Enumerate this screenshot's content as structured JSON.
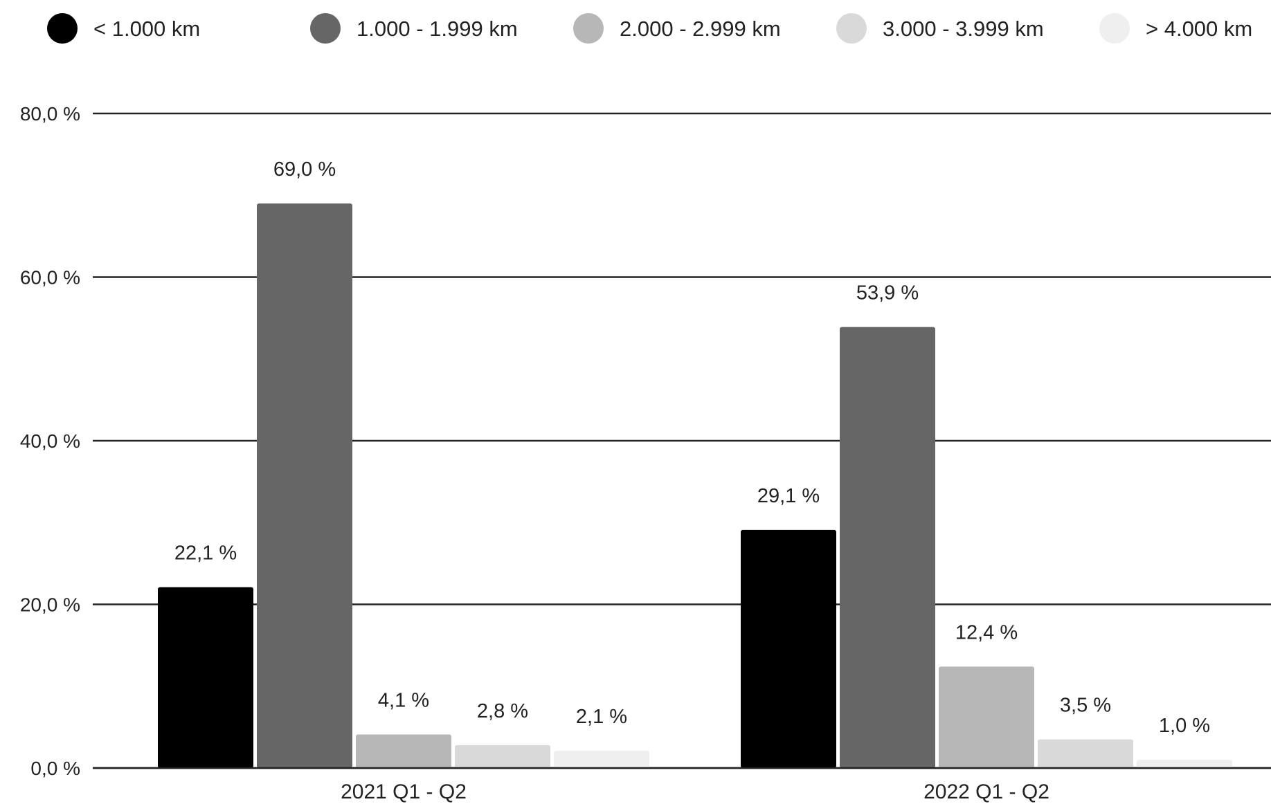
{
  "chart_data": {
    "type": "bar",
    "title": "",
    "xlabel": "",
    "ylabel": "",
    "categories": [
      "2021 Q1 - Q2",
      "2022 Q1 - Q2"
    ],
    "series": [
      {
        "name": "< 1.000 km",
        "color": "#000000",
        "values": [
          22.1,
          29.1
        ],
        "labels": [
          "22,1 %",
          "29,1 %"
        ]
      },
      {
        "name": "1.000 - 1.999 km",
        "color": "#666666",
        "values": [
          69.0,
          53.9
        ],
        "labels": [
          "69,0 %",
          "53,9 %"
        ]
      },
      {
        "name": "2.000 - 2.999 km",
        "color": "#b7b7b7",
        "values": [
          4.1,
          12.4
        ],
        "labels": [
          "4,1 %",
          "12,4 %"
        ]
      },
      {
        "name": "3.000 - 3.999 km",
        "color": "#d9d9d9",
        "values": [
          2.8,
          3.5
        ],
        "labels": [
          "2,8 %",
          "3,5 %"
        ]
      },
      {
        "name": "> 4.000 km",
        "color": "#efefef",
        "values": [
          2.1,
          1.0
        ],
        "labels": [
          "2,1 %",
          "1,0 %"
        ]
      }
    ],
    "ylim": [
      0,
      80
    ],
    "yticks": [
      0,
      20,
      40,
      60,
      80
    ],
    "ytick_labels": [
      "0,0 %",
      "20,0 %",
      "40,0 %",
      "60,0 %",
      "80,0 %"
    ],
    "grid": true,
    "legend_position": "top"
  }
}
